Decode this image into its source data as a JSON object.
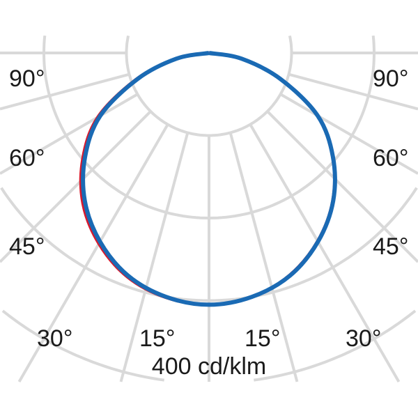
{
  "chart_data": {
    "type": "polar",
    "unit_label": "400 cd/klm",
    "r_ticks": [
      100,
      200,
      300,
      400
    ],
    "angle_grid_step_deg": 15,
    "angle_labels": {
      "left": [
        "90°",
        "60°",
        "45°",
        "30°",
        "15°"
      ],
      "right": [
        "90°",
        "60°",
        "45°",
        "30°",
        "15°"
      ]
    },
    "grid": true,
    "grid_color": "#d9d9d9",
    "series": [
      {
        "color": "#d7192d",
        "angles": [
          -90,
          -80,
          -70,
          -60,
          -50,
          -40,
          -30,
          -20,
          -10,
          0,
          10,
          20,
          30,
          40,
          50,
          60,
          70,
          80,
          90
        ],
        "values": [
          0,
          42,
          95,
          156,
          200,
          238,
          267,
          289,
          301,
          305,
          300,
          286,
          263,
          233,
          195,
          151,
          92,
          40,
          0
        ]
      },
      {
        "color": "#1a6ab4",
        "angles": [
          -90,
          -80,
          -70,
          -60,
          -50,
          -40,
          -30,
          -20,
          -10,
          0,
          10,
          20,
          30,
          40,
          50,
          60,
          70,
          80,
          90
        ],
        "values": [
          0,
          40,
          92,
          152,
          196,
          234,
          264,
          287,
          300,
          305,
          300,
          287,
          264,
          234,
          196,
          152,
          92,
          40,
          0
        ]
      }
    ]
  }
}
